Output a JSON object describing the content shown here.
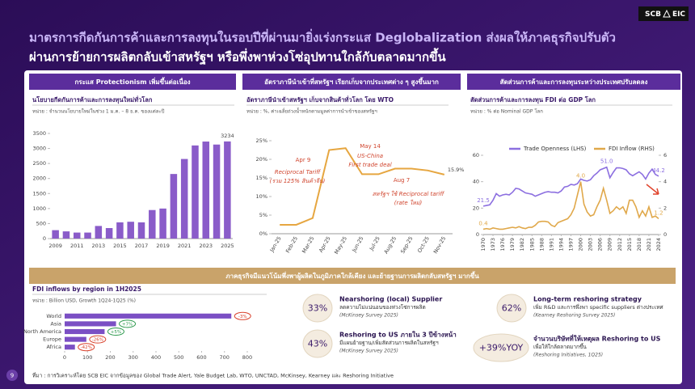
{
  "logo": {
    "left": "SCB",
    "right": "EIC"
  },
  "title_lines": [
    "มาตรการกีดกันการค้าและการลงทุนในรอบปีที่ผ่านมายิ่งเร่งกระแส Deglobalization ส่งผลให้ภาคธุรกิจปรับตัว",
    "ผ่านการย้ายการผลิตกลับเข้าสหรัฐฯ หรือพึ่งพาห่วงโซ่อุปทานใกล้กับตลาดมากขึ้น"
  ],
  "panel_headers": [
    "กระแส Protectionism เพิ่มขึ้นต่อเนื่อง",
    "อัตราภาษีนำเข้าที่สหรัฐฯ เรียกเก็บจากประเทศต่าง ๆ สูงขึ้นมาก",
    "สัดส่วนการค้าและการลงทุนระหว่างประเทศปรับลดลง"
  ],
  "banner": "ภาคธุรกิจมีแนวโน้มพึ่งพาผู้ผลิตในภูมิภาคใกล้เคียง และย้ายฐานการผลิตกลับสหรัฐฯ มากขึ้น",
  "stats": [
    {
      "value": "33%",
      "title": "Nearshoring (local) Supplier",
      "text": "ลดความไม่แน่นอนของห่วงโซ่การผลิต",
      "source": "(McKinsey Survey 2025)"
    },
    {
      "value": "43%",
      "title": "Reshoring to US ภายใน 3 ปีข้างหน้า",
      "text": "มีแผนย้ายฐาน/เพิ่มสัดส่วนการผลิตในสหรัฐฯ",
      "source": "(McKinsey Survey 2025)"
    },
    {
      "value": "62%",
      "title": "Long-term reshoring strategy",
      "text": "เพิ่ม R&D และการพึ่งพา specific suppliers ต่างประเทศ",
      "source": "(Kearney Reshoring Survey 2025)"
    },
    {
      "value": "+39%YOY",
      "title": "จำนวนบริษัทที่ให้เหตุผล Reshoring to US",
      "text": "เพื่อให้ใกล้ตลาดมากขึ้น",
      "source": "(Reshoring Initiatives, 1Q25)"
    }
  ],
  "source": "ที่มา : การวิเคราะห์โดย SCB EIC จากข้อมูลของ Global Trade Alert, Yale Budget Lab, WTO, UNCTAD, McKinsey, Kearney และ Reshoring Initiative",
  "page_number": "9",
  "chart_data": [
    {
      "type": "bar",
      "title": "นโยบายกีดกันการค้าและการลงทุนใหม่ทั่วโลก",
      "subtitle": "หน่วย : จำนวนนโยบายใหม่ในช่วง 1 ม.ค. – 8 ธ.ค. ของแต่ละปี",
      "categories": [
        "2009",
        null,
        "2011",
        null,
        "2013",
        null,
        "2015",
        null,
        "2017",
        null,
        "2019",
        null,
        "2021",
        null,
        "2023",
        null,
        "2025"
      ],
      "values": [
        280,
        240,
        200,
        200,
        420,
        350,
        540,
        560,
        540,
        950,
        1000,
        2150,
        2650,
        3100,
        3230,
        3130,
        3234
      ],
      "value_labels": [
        null,
        null,
        null,
        null,
        null,
        null,
        null,
        null,
        null,
        null,
        null,
        null,
        null,
        null,
        null,
        null,
        "3234"
      ],
      "color": "#8a5cc9",
      "ylim": [
        0,
        3500
      ],
      "yticks": [
        0,
        500,
        1000,
        1500,
        2000,
        2500,
        3000,
        3500
      ]
    },
    {
      "type": "line",
      "title": "อัตราภาษีนำเข้าสหรัฐฯ เก็บจากสินค้าทั่วโลก โดย WTO",
      "subtitle": "หน่วย : %, ค่าเฉลี่ยถ่วงน้ำหนักตามมูลค่าการนำเข้าของสหรัฐฯ",
      "categories": [
        "Jan-25",
        "Feb-25",
        "Mar-25",
        "Apr-25",
        "May-25",
        "Jun-25",
        "Jul-25",
        "Aug-25",
        "Sep-25",
        "Oct-25",
        "Nov-25"
      ],
      "values": [
        2.4,
        2.4,
        4.2,
        22.5,
        23,
        16,
        16,
        17.5,
        17.5,
        17,
        15.9
      ],
      "value_labels": [
        null,
        null,
        null,
        null,
        null,
        null,
        null,
        null,
        null,
        null,
        "15.9%"
      ],
      "color": "#e6a640",
      "ylim": [
        0,
        25
      ],
      "yticks": [
        {
          "value": 0,
          "label": "0%"
        },
        {
          "value": 5,
          "label": "5%"
        },
        {
          "value": 10,
          "label": "10%"
        },
        {
          "value": 15,
          "label": "15%"
        },
        {
          "value": 20,
          "label": "20%"
        },
        {
          "value": 25,
          "label": "25%"
        }
      ],
      "annotations": [
        "Apr 9",
        "Reciprocal Tariff",
        "(รวม 125% สินค้าจีน)",
        "May 14",
        "US-China",
        "First trade deal",
        "Aug 7",
        "สหรัฐฯ ใช้ Reciprocal tariff",
        "(rate ใหม่)"
      ]
    },
    {
      "type": "line",
      "title": "สัดส่วนการค้าและการลงทุน FDI ต่อ GDP โลก",
      "subtitle": "หน่วย : % ต่อ Nominal GDP โลก",
      "x": [
        1970,
        1971,
        1972,
        1973,
        1974,
        1975,
        1976,
        1977,
        1978,
        1979,
        1980,
        1981,
        1982,
        1983,
        1984,
        1985,
        1986,
        1987,
        1988,
        1989,
        1990,
        1991,
        1992,
        1993,
        1994,
        1995,
        1996,
        1997,
        1998,
        1999,
        2000,
        2001,
        2002,
        2003,
        2004,
        2005,
        2006,
        2007,
        2008,
        2009,
        2010,
        2011,
        2012,
        2013,
        2014,
        2015,
        2016,
        2017,
        2018,
        2019,
        2020,
        2021,
        2022,
        2023,
        2024
      ],
      "series": [
        {
          "name": "Trade Openness (LHS)",
          "color": "#8c6fe0",
          "values": [
            21.5,
            22,
            22.5,
            26,
            31,
            29,
            30,
            30.5,
            30,
            32,
            35,
            34.5,
            33,
            31.5,
            31,
            30.5,
            29,
            30,
            31,
            32,
            32.5,
            32,
            32,
            31.5,
            33,
            36,
            36.5,
            38,
            37.5,
            38.5,
            42,
            41,
            40.5,
            41.5,
            44.5,
            46.5,
            49,
            50,
            51,
            43,
            47,
            50.5,
            50.5,
            50,
            49,
            46,
            44.5,
            46,
            47.5,
            45.5,
            42,
            46.5,
            49.5,
            45.5,
            44.2
          ],
          "value_labels": [
            "21.5",
            null,
            null,
            null,
            null,
            null,
            null,
            null,
            null,
            null,
            null,
            null,
            null,
            null,
            null,
            null,
            null,
            null,
            null,
            null,
            null,
            null,
            null,
            null,
            null,
            null,
            null,
            null,
            null,
            null,
            null,
            null,
            null,
            null,
            null,
            null,
            null,
            null,
            "51.0",
            null,
            null,
            null,
            null,
            null,
            null,
            null,
            null,
            null,
            null,
            null,
            null,
            null,
            null,
            null,
            "44.2"
          ]
        },
        {
          "name": "FDI Inflow (RHS)",
          "color": "#e0a84a",
          "axis": "y2",
          "values": [
            0.4,
            0.45,
            0.4,
            0.5,
            0.45,
            0.4,
            0.4,
            0.45,
            0.5,
            0.55,
            0.5,
            0.6,
            0.5,
            0.45,
            0.55,
            0.55,
            0.7,
            0.95,
            1,
            1,
            0.95,
            0.7,
            0.6,
            0.9,
            1,
            1.1,
            1.2,
            1.5,
            2,
            3,
            4,
            2.3,
            1.7,
            1.4,
            1.5,
            2.1,
            2.6,
            3.5,
            2.6,
            1.6,
            1.8,
            2.1,
            1.9,
            2.1,
            1.6,
            2.6,
            2.6,
            2.1,
            1.3,
            1.8,
            1.4,
            2.1,
            1.3,
            1.4,
            1.2
          ],
          "value_labels": [
            "0.4",
            null,
            null,
            null,
            null,
            null,
            null,
            null,
            null,
            null,
            null,
            null,
            null,
            null,
            null,
            null,
            null,
            null,
            null,
            null,
            null,
            null,
            null,
            null,
            null,
            null,
            null,
            null,
            null,
            null,
            "4.0",
            null,
            null,
            null,
            null,
            null,
            null,
            null,
            null,
            null,
            null,
            null,
            null,
            null,
            null,
            null,
            null,
            null,
            null,
            null,
            null,
            null,
            null,
            null,
            "1.2"
          ]
        }
      ],
      "xlim": [
        1970,
        2024
      ],
      "xticks": [
        1970,
        1973,
        1976,
        1979,
        1982,
        1985,
        1988,
        1991,
        1994,
        1997,
        2000,
        2003,
        2006,
        2009,
        2012,
        2015,
        2018,
        2021,
        2024
      ],
      "ylim": [
        0,
        60
      ],
      "yticks": [
        0,
        20,
        40,
        60
      ],
      "y2lim": [
        0,
        6
      ],
      "y2ticks": [
        0,
        2,
        4,
        6
      ],
      "legend": "top"
    },
    {
      "type": "hbar",
      "title": "FDI inflows by region in 1H2025",
      "subtitle": "หน่วย : Billion USD, Growth 1Q24-1Q25 (%)",
      "categories": [
        "World",
        "Asia",
        "North America",
        "Europe",
        "Africa"
      ],
      "values": [
        730,
        225,
        175,
        95,
        45
      ],
      "color": "#7b4fc4",
      "growth": {
        "values": [
          -3,
          7,
          5,
          -26,
          -42
        ],
        "value_labels": [
          "-3%",
          "+7%",
          "+5%",
          "-26%",
          "-42%"
        ]
      },
      "xlim": [
        0,
        800
      ],
      "xticks": [
        0,
        100,
        200,
        300,
        400,
        500,
        600,
        700,
        800
      ]
    }
  ]
}
